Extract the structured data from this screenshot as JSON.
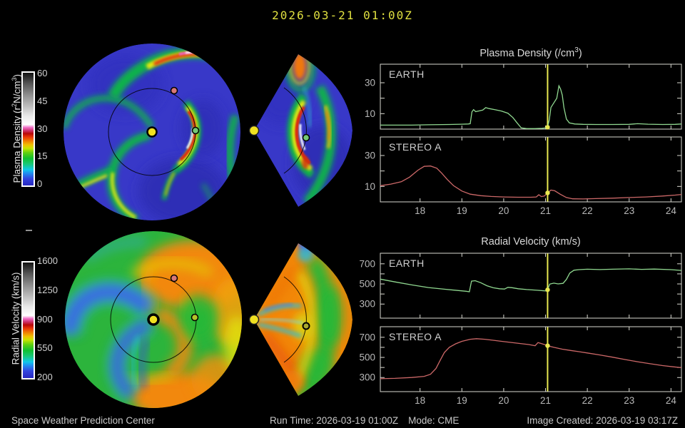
{
  "title": "2026-03-21 01:00Z",
  "colors": {
    "title": "#e0e040",
    "axis": "#d8d8d0",
    "tick_label": "#b8b8b8",
    "panel_label": "#d0d0d0",
    "now_line": "#e8e850",
    "earth_line": "#90d890",
    "stereo_line": "#cc6868",
    "status_text": "#c8c8c8"
  },
  "colorbars": [
    {
      "name": "plasma-density",
      "label_parts": [
        "Plasma Density (r",
        "2",
        "N/cm",
        "3",
        ")"
      ],
      "ticks": [
        "60",
        "45",
        "30",
        "15",
        "0"
      ]
    },
    {
      "name": "radial-velocity",
      "label": "Radial Velocity (km/s)",
      "ticks": [
        "1600",
        "1250",
        "900",
        "550",
        "200"
      ]
    }
  ],
  "chart_titles": {
    "density_parts": [
      "Plasma Density (/cm",
      "3",
      ")"
    ],
    "velocity": "Radial Velocity (km/s)"
  },
  "status_bar": {
    "left": "Space Weather Prediction Center",
    "run_time": "Run Time: 2026-03-19 01:00Z",
    "mode": "Mode: CME",
    "image_created": "Image Created: 2026-03-19 03:17Z"
  },
  "chart_data": [
    {
      "type": "line",
      "group": "Plasma Density (/cm3)",
      "panel": "EARTH",
      "x_range": [
        17.05,
        24.25
      ],
      "ylim": [
        0,
        42
      ],
      "yticks": [
        10,
        20,
        30
      ],
      "ytick_labels": [
        10,
        30
      ],
      "xticks": [
        18,
        19,
        20,
        21,
        22,
        23,
        24
      ],
      "show_xlabels": false,
      "now_line_x": 21.05,
      "now_marker": 1.2,
      "line_color": "#90d890",
      "points": [
        [
          17.05,
          2.6
        ],
        [
          17.4,
          2.6
        ],
        [
          17.8,
          2.6
        ],
        [
          18.2,
          2.8
        ],
        [
          18.7,
          3.0
        ],
        [
          19.0,
          3.2
        ],
        [
          19.15,
          3.3
        ],
        [
          19.2,
          3.5
        ],
        [
          19.24,
          11.2
        ],
        [
          19.28,
          12.6
        ],
        [
          19.33,
          11.3
        ],
        [
          19.42,
          11.8
        ],
        [
          19.5,
          12.3
        ],
        [
          19.57,
          13.9
        ],
        [
          19.65,
          13.3
        ],
        [
          19.8,
          12.5
        ],
        [
          19.95,
          11.7
        ],
        [
          20.1,
          10.3
        ],
        [
          20.22,
          7.5
        ],
        [
          20.32,
          4.0
        ],
        [
          20.42,
          0.8
        ],
        [
          20.55,
          0.3
        ],
        [
          20.75,
          0.3
        ],
        [
          20.92,
          0.5
        ],
        [
          21.0,
          0.8
        ],
        [
          21.05,
          1.2
        ],
        [
          21.09,
          6.0
        ],
        [
          21.13,
          14.0
        ],
        [
          21.2,
          17.0
        ],
        [
          21.27,
          20.0
        ],
        [
          21.32,
          28.0
        ],
        [
          21.36,
          26.0
        ],
        [
          21.4,
          22.0
        ],
        [
          21.44,
          14.0
        ],
        [
          21.5,
          6.5
        ],
        [
          21.57,
          4.0
        ],
        [
          21.7,
          3.3
        ],
        [
          21.9,
          3.1
        ],
        [
          22.2,
          3.0
        ],
        [
          22.6,
          3.0
        ],
        [
          23.0,
          3.1
        ],
        [
          23.2,
          3.5
        ],
        [
          23.45,
          3.2
        ],
        [
          23.8,
          3.0
        ],
        [
          24.1,
          3.1
        ],
        [
          24.25,
          3.3
        ]
      ]
    },
    {
      "type": "line",
      "group": "Plasma Density (/cm3)",
      "panel": "STEREO A",
      "x_range": [
        17.05,
        24.25
      ],
      "ylim": [
        0,
        42
      ],
      "yticks": [
        10,
        20,
        30
      ],
      "ytick_labels": [
        10,
        30
      ],
      "xticks": [
        18,
        19,
        20,
        21,
        22,
        23,
        24
      ],
      "show_xlabels": true,
      "now_line_x": 21.05,
      "now_marker": 5.8,
      "line_color": "#cc6868",
      "points": [
        [
          17.05,
          10.5
        ],
        [
          17.3,
          11.5
        ],
        [
          17.55,
          13.0
        ],
        [
          17.75,
          16.0
        ],
        [
          17.95,
          20.5
        ],
        [
          18.1,
          23.0
        ],
        [
          18.25,
          23.2
        ],
        [
          18.4,
          21.8
        ],
        [
          18.52,
          18.5
        ],
        [
          18.65,
          14.5
        ],
        [
          18.8,
          10.5
        ],
        [
          19.0,
          7.0
        ],
        [
          19.2,
          5.0
        ],
        [
          19.45,
          4.0
        ],
        [
          19.7,
          3.5
        ],
        [
          20.0,
          3.2
        ],
        [
          20.35,
          3.0
        ],
        [
          20.65,
          3.0
        ],
        [
          20.78,
          3.2
        ],
        [
          20.84,
          4.6
        ],
        [
          20.9,
          3.4
        ],
        [
          20.97,
          3.8
        ],
        [
          21.05,
          5.8
        ],
        [
          21.13,
          7.6
        ],
        [
          21.22,
          7.2
        ],
        [
          21.35,
          5.0
        ],
        [
          21.5,
          2.8
        ],
        [
          21.65,
          2.0
        ],
        [
          21.9,
          1.9
        ],
        [
          22.2,
          2.1
        ],
        [
          22.6,
          2.4
        ],
        [
          23.0,
          2.8
        ],
        [
          23.4,
          3.2
        ],
        [
          23.8,
          3.8
        ],
        [
          24.1,
          4.4
        ],
        [
          24.25,
          4.8
        ]
      ]
    },
    {
      "type": "line",
      "group": "Radial Velocity (km/s)",
      "panel": "EARTH",
      "x_range": [
        17.05,
        24.25
      ],
      "ylim": [
        160,
        805
      ],
      "yticks": [
        300,
        400,
        500,
        600,
        700
      ],
      "ytick_labels": [
        300,
        500,
        700
      ],
      "xticks": [
        18,
        19,
        20,
        21,
        22,
        23,
        24
      ],
      "show_xlabels": false,
      "now_line_x": 21.05,
      "now_marker": 442,
      "line_color": "#90d890",
      "points": [
        [
          17.05,
          548
        ],
        [
          17.4,
          520
        ],
        [
          17.8,
          490
        ],
        [
          18.2,
          464
        ],
        [
          18.6,
          447
        ],
        [
          18.9,
          435
        ],
        [
          19.1,
          427
        ],
        [
          19.18,
          422
        ],
        [
          19.23,
          528
        ],
        [
          19.32,
          532
        ],
        [
          19.45,
          512
        ],
        [
          19.6,
          482
        ],
        [
          19.75,
          462
        ],
        [
          19.9,
          452
        ],
        [
          20.02,
          449
        ],
        [
          20.1,
          466
        ],
        [
          20.2,
          463
        ],
        [
          20.35,
          452
        ],
        [
          20.55,
          444
        ],
        [
          20.8,
          437
        ],
        [
          21.0,
          431
        ],
        [
          21.05,
          442
        ],
        [
          21.1,
          498
        ],
        [
          21.2,
          508
        ],
        [
          21.3,
          500
        ],
        [
          21.42,
          506
        ],
        [
          21.5,
          545
        ],
        [
          21.58,
          608
        ],
        [
          21.68,
          636
        ],
        [
          21.8,
          642
        ],
        [
          22.0,
          646
        ],
        [
          22.3,
          643
        ],
        [
          22.6,
          646
        ],
        [
          23.0,
          650
        ],
        [
          23.3,
          645
        ],
        [
          23.6,
          648
        ],
        [
          24.0,
          642
        ],
        [
          24.25,
          634
        ]
      ]
    },
    {
      "type": "line",
      "group": "Radial Velocity (km/s)",
      "panel": "STEREO A",
      "x_range": [
        17.05,
        24.25
      ],
      "ylim": [
        160,
        805
      ],
      "yticks": [
        300,
        400,
        500,
        600,
        700
      ],
      "ytick_labels": [
        300,
        500,
        700
      ],
      "xticks": [
        18,
        19,
        20,
        21,
        22,
        23,
        24
      ],
      "show_xlabels": true,
      "now_line_x": 21.05,
      "now_marker": 616,
      "line_color": "#cc6868",
      "points": [
        [
          17.05,
          288
        ],
        [
          17.4,
          292
        ],
        [
          17.8,
          300
        ],
        [
          18.1,
          312
        ],
        [
          18.25,
          332
        ],
        [
          18.38,
          390
        ],
        [
          18.48,
          470
        ],
        [
          18.58,
          548
        ],
        [
          18.7,
          600
        ],
        [
          18.85,
          635
        ],
        [
          19.0,
          660
        ],
        [
          19.2,
          680
        ],
        [
          19.35,
          686
        ],
        [
          19.55,
          680
        ],
        [
          19.75,
          670
        ],
        [
          19.95,
          660
        ],
        [
          20.15,
          650
        ],
        [
          20.4,
          638
        ],
        [
          20.6,
          628
        ],
        [
          20.75,
          616
        ],
        [
          20.82,
          648
        ],
        [
          20.9,
          638
        ],
        [
          21.0,
          624
        ],
        [
          21.05,
          616
        ],
        [
          21.2,
          600
        ],
        [
          21.4,
          582
        ],
        [
          21.6,
          569
        ],
        [
          21.8,
          557
        ],
        [
          22.0,
          544
        ],
        [
          22.3,
          524
        ],
        [
          22.6,
          502
        ],
        [
          22.9,
          479
        ],
        [
          23.2,
          457
        ],
        [
          23.5,
          437
        ],
        [
          23.8,
          419
        ],
        [
          24.05,
          407
        ],
        [
          24.25,
          398
        ]
      ]
    }
  ]
}
